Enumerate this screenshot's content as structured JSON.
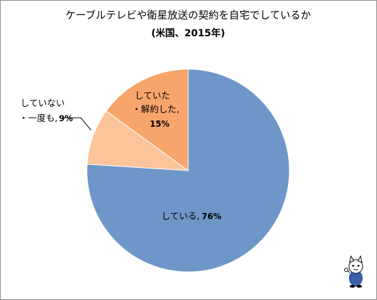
{
  "chart_data": {
    "type": "pie",
    "title": "ケーブルテレビや衛星放送の契約を自宅でしているか",
    "subtitle": "(米国、2015年)",
    "slices": [
      {
        "label": "している",
        "value": 76,
        "value_text": "76%",
        "color": "#6f96c8"
      },
      {
        "label": "していない・一度も",
        "value": 9,
        "value_text": "9%",
        "color": "#fbc49a"
      },
      {
        "label": "していた・解約した",
        "value": 15,
        "value_text": "15%",
        "color": "#f7a56b"
      }
    ],
    "labels": {
      "shiteiru": "している,",
      "shiteiru_val": "76%",
      "never_line1": "していない",
      "never_line2": "・一度も,",
      "never_val": "9%",
      "cancel_line1": "していた",
      "cancel_line2": "・解約した,",
      "cancel_val": "15%"
    },
    "legend": "none"
  },
  "mascot_icon": "cat-mascot-icon"
}
